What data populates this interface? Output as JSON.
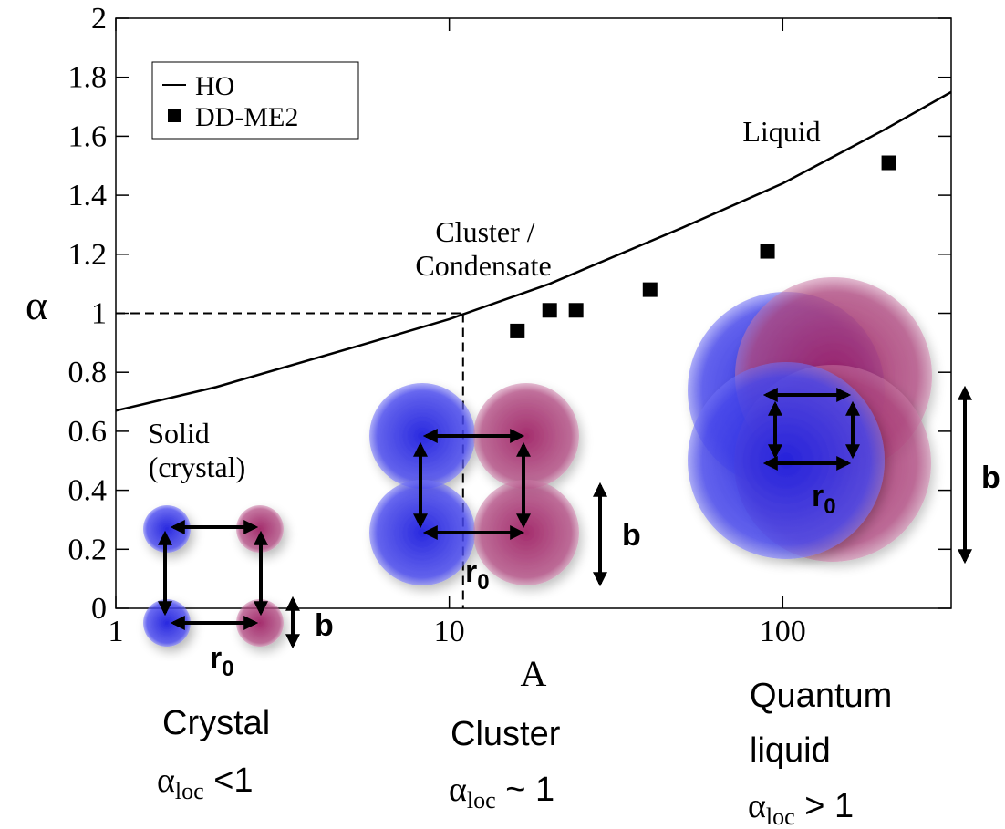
{
  "chart_data": {
    "type": "scatter",
    "xlabel": "A",
    "ylabel": "α",
    "xscale": "log",
    "xlim": [
      1,
      320
    ],
    "ylim": [
      0,
      2
    ],
    "xticks": [
      1,
      10,
      100
    ],
    "yticks": [
      0,
      0.2,
      0.4,
      0.6,
      0.8,
      1,
      1.2,
      1.4,
      1.6,
      1.8,
      2
    ],
    "legend": "upper left",
    "series": [
      {
        "name": "HO",
        "style": "line",
        "color": "#000000",
        "x": [
          1,
          2,
          5,
          10,
          20,
          50,
          100,
          200,
          320
        ],
        "values": [
          0.67,
          0.75,
          0.88,
          0.98,
          1.1,
          1.29,
          1.44,
          1.62,
          1.75
        ]
      },
      {
        "name": "DD-ME2",
        "style": "marker",
        "color": "#000000",
        "x": [
          16,
          20,
          24,
          40,
          90,
          208
        ],
        "values": [
          0.94,
          1.01,
          1.01,
          1.08,
          1.21,
          1.51
        ]
      }
    ],
    "crossover": {
      "x": 11,
      "y": 1
    },
    "annotations": {
      "liquid": "Liquid",
      "cluster": [
        "Cluster /",
        "Condensate"
      ],
      "solid": [
        "Solid",
        "(crystal)"
      ]
    },
    "diagrams": {
      "spacing": {
        "main": "r",
        "sub": "0"
      },
      "size": "b",
      "crystal": {
        "name": "Crystal",
        "condition": {
          "main": "α",
          "sub": "loc",
          "rest": " <1"
        }
      },
      "cluster": {
        "name": "Cluster",
        "condition": {
          "main": "α",
          "sub": "loc",
          "rest": " ~ 1"
        }
      },
      "quantum": {
        "name": [
          "Quantum",
          "liquid"
        ],
        "condition": {
          "main": "α",
          "sub": "loc",
          "rest": " > 1"
        }
      }
    }
  }
}
